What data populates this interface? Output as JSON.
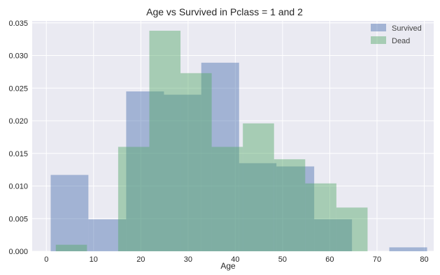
{
  "chart_data": {
    "type": "histogram",
    "title": "Age vs Survived in Pclass = 1 and  2",
    "xlabel": "Age",
    "ylabel": "",
    "xlim": [
      -3,
      82
    ],
    "ylim": [
      0,
      0.0353
    ],
    "xticks": [
      0,
      10,
      20,
      30,
      40,
      50,
      60,
      70,
      80
    ],
    "xtick_labels": [
      "0",
      "10",
      "20",
      "30",
      "40",
      "50",
      "60",
      "70",
      "80"
    ],
    "yticks": [
      0.0,
      0.005,
      0.01,
      0.015,
      0.02,
      0.025,
      0.03,
      0.035
    ],
    "ytick_labels": [
      "0.000",
      "0.005",
      "0.010",
      "0.015",
      "0.020",
      "0.025",
      "0.030",
      "0.035"
    ],
    "grid": true,
    "legend_position": "top-right",
    "series": [
      {
        "name": "Survived",
        "color": "#4C72B0",
        "alpha": 0.45,
        "bins": [
          {
            "x0": 0.92,
            "x1": 8.9,
            "value": 0.0117
          },
          {
            "x0": 8.9,
            "x1": 16.9,
            "value": 0.0049
          },
          {
            "x0": 16.9,
            "x1": 24.9,
            "value": 0.0245
          },
          {
            "x0": 24.9,
            "x1": 32.8,
            "value": 0.024
          },
          {
            "x0": 32.8,
            "x1": 40.8,
            "value": 0.0289
          },
          {
            "x0": 40.8,
            "x1": 48.7,
            "value": 0.0135
          },
          {
            "x0": 48.7,
            "x1": 56.7,
            "value": 0.013
          },
          {
            "x0": 56.7,
            "x1": 64.7,
            "value": 0.0049
          },
          {
            "x0": 64.7,
            "x1": 72.6,
            "value": 0.0
          },
          {
            "x0": 72.6,
            "x1": 80.6,
            "value": 0.0006
          }
        ]
      },
      {
        "name": "Dead",
        "color": "#55A868",
        "alpha": 0.45,
        "bins": [
          {
            "x0": 2.0,
            "x1": 8.6,
            "value": 0.001
          },
          {
            "x0": 8.6,
            "x1": 15.2,
            "value": 0.0
          },
          {
            "x0": 15.2,
            "x1": 21.8,
            "value": 0.016
          },
          {
            "x0": 21.8,
            "x1": 28.4,
            "value": 0.0338
          },
          {
            "x0": 28.4,
            "x1": 35.0,
            "value": 0.0273
          },
          {
            "x0": 35.0,
            "x1": 41.6,
            "value": 0.016
          },
          {
            "x0": 41.6,
            "x1": 48.2,
            "value": 0.0196
          },
          {
            "x0": 48.2,
            "x1": 54.8,
            "value": 0.0141
          },
          {
            "x0": 54.8,
            "x1": 61.4,
            "value": 0.0104
          },
          {
            "x0": 61.4,
            "x1": 68.0,
            "value": 0.0067
          }
        ]
      }
    ]
  },
  "colors": {
    "plot_background": "#EAEAF2",
    "grid": "#FFFFFF",
    "text": "#262626",
    "legend_text": "#444444"
  }
}
